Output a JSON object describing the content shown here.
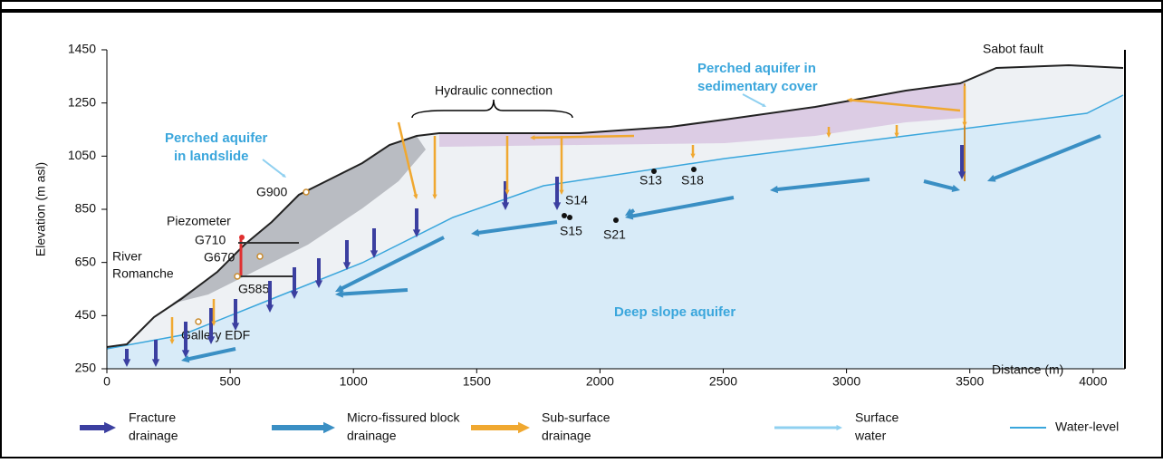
{
  "axes": {
    "y_label": "Elevation (m asl)",
    "x_label": "Distance (m)",
    "yticks": [
      250,
      450,
      650,
      850,
      1050,
      1250,
      1450
    ],
    "xticks": [
      0,
      500,
      1000,
      1500,
      2000,
      2500,
      3000,
      3500,
      4000
    ]
  },
  "annotations": {
    "sabot_fault": "Sabot fault",
    "hydraulic_connection": "Hydraulic connection",
    "perched_sedimentary": [
      "Perched aquifer in",
      "sedimentary cover"
    ],
    "perched_landslide": [
      "Perched aquifer",
      "in landslide"
    ],
    "river": [
      "River",
      "Romanche"
    ],
    "piezometer": "Piezometer",
    "g900": "G900",
    "g710": "G710",
    "g670": "G670",
    "g585": "G585",
    "gallery": "Gallery EDF",
    "s13": "S13",
    "s18": "S18",
    "s14": "S14",
    "s15": "S15",
    "s21": "S21",
    "deep_aquifer": "Deep slope aquifer"
  },
  "legend": {
    "fracture": [
      "Fracture",
      "drainage"
    ],
    "micro": [
      "Micro-fissured block",
      "drainage"
    ],
    "subsurface": [
      "Sub-surface",
      "drainage"
    ],
    "surface": [
      "Surface",
      "water"
    ],
    "water_level": "Water-level"
  }
}
